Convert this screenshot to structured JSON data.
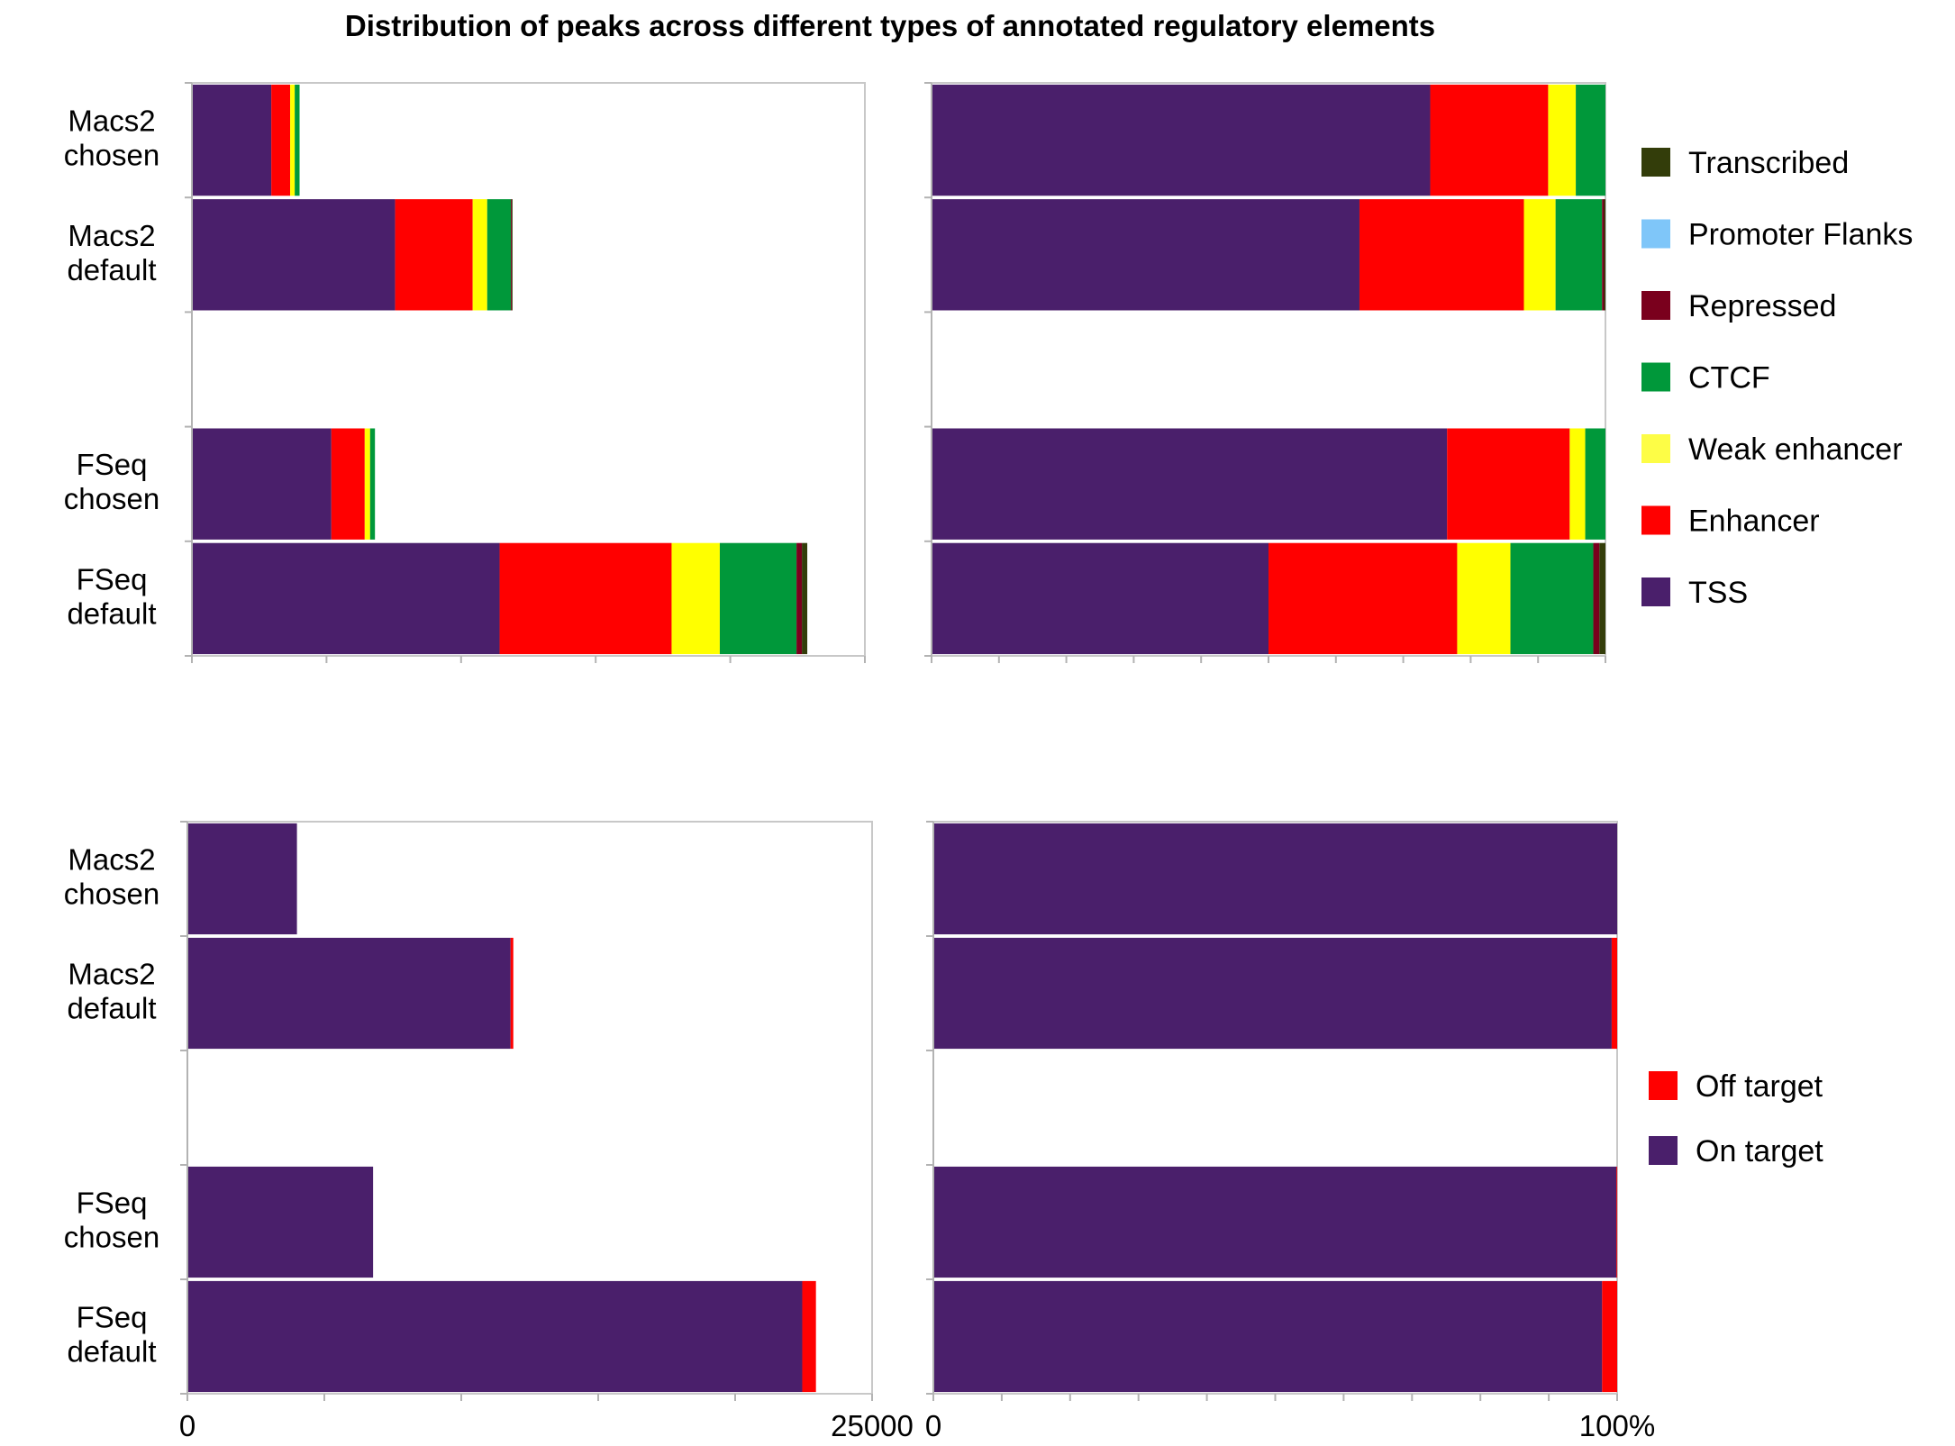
{
  "title": "Distribution of peaks across different types of annotated regulatory elements",
  "legend_top": {
    "placement": "right",
    "items": [
      {
        "name": "Transcribed",
        "color": "#333d0a"
      },
      {
        "name": "Promoter Flanks",
        "color": "#7fc6f9"
      },
      {
        "name": "Repressed",
        "color": "#7a001d"
      },
      {
        "name": "CTCF",
        "color": "#00983a"
      },
      {
        "name": "Weak enhancer",
        "color": "#fdfd46"
      },
      {
        "name": "Enhancer",
        "color": "#ff0000"
      },
      {
        "name": "TSS",
        "color": "#4a1f6b"
      }
    ]
  },
  "legend_bottom": {
    "placement": "right",
    "items": [
      {
        "name": "Off target",
        "color": "#ff0000"
      },
      {
        "name": "On target",
        "color": "#4a1f6b"
      }
    ]
  },
  "chart_data": [
    {
      "type": "bar",
      "orientation": "horizontal",
      "stacked": true,
      "categories": [
        "Macs2\nchosen",
        "Macs2\ndefault",
        "",
        "FSeq\nchosen",
        "FSeq\ndefault"
      ],
      "xlim": [
        0,
        25000
      ],
      "grid": false,
      "series": [
        {
          "name": "TSS",
          "color": "#4a1f6b",
          "values": [
            2950,
            7550,
            0,
            5180,
            11430
          ]
        },
        {
          "name": "Enhancer",
          "color": "#ff0000",
          "values": [
            700,
            2880,
            0,
            1240,
            6390
          ]
        },
        {
          "name": "Weak enhancer",
          "color": "#ffff00",
          "values": [
            170,
            540,
            0,
            200,
            1790
          ]
        },
        {
          "name": "CTCF",
          "color": "#00983a",
          "values": [
            180,
            880,
            0,
            180,
            2850
          ]
        },
        {
          "name": "Repressed",
          "color": "#7a001d",
          "values": [
            0,
            30,
            0,
            0,
            200
          ]
        },
        {
          "name": "Promoter Flanks",
          "color": "#7fc6f9",
          "values": [
            0,
            0,
            0,
            0,
            0
          ]
        },
        {
          "name": "Transcribed",
          "color": "#333d0a",
          "values": [
            0,
            30,
            0,
            0,
            200
          ]
        }
      ]
    },
    {
      "type": "bar",
      "orientation": "horizontal",
      "stacked": true,
      "normalized": true,
      "categories": [
        "Macs2\nchosen",
        "Macs2\ndefault",
        "",
        "FSeq\nchosen",
        "FSeq\ndefault"
      ],
      "xlim": [
        0,
        100
      ],
      "grid": false,
      "series": [
        {
          "name": "TSS",
          "color": "#4a1f6b",
          "values": [
            74,
            63.5,
            0,
            76.5,
            50
          ]
        },
        {
          "name": "Enhancer",
          "color": "#ff0000",
          "values": [
            17.5,
            24.4,
            0,
            18.2,
            28
          ]
        },
        {
          "name": "Weak enhancer",
          "color": "#ffff00",
          "values": [
            4.1,
            4.7,
            0,
            2.3,
            7.9
          ]
        },
        {
          "name": "CTCF",
          "color": "#00983a",
          "values": [
            4.4,
            6.9,
            0,
            3,
            12.3
          ]
        },
        {
          "name": "Repressed",
          "color": "#7a001d",
          "values": [
            0,
            0.3,
            0,
            0,
            0.9
          ]
        },
        {
          "name": "Promoter Flanks",
          "color": "#7fc6f9",
          "values": [
            0,
            0,
            0,
            0,
            0
          ]
        },
        {
          "name": "Transcribed",
          "color": "#333d0a",
          "values": [
            0,
            0.2,
            0,
            0,
            0.9
          ]
        }
      ]
    },
    {
      "type": "bar",
      "orientation": "horizontal",
      "stacked": true,
      "categories": [
        "Macs2\nchosen",
        "Macs2\ndefault",
        "",
        "FSeq\nchosen",
        "FSeq\ndefault"
      ],
      "xlim": [
        0,
        25000
      ],
      "x_tick_labels": [
        "0",
        "25000"
      ],
      "grid": false,
      "series": [
        {
          "name": "On target",
          "color": "#4a1f6b",
          "values": [
            4000,
            11800,
            0,
            6780,
            22450
          ]
        },
        {
          "name": "Off target",
          "color": "#ff0000",
          "values": [
            0,
            100,
            0,
            0,
            500
          ]
        }
      ]
    },
    {
      "type": "bar",
      "orientation": "horizontal",
      "stacked": true,
      "normalized": true,
      "categories": [
        "Macs2\nchosen",
        "Macs2\ndefault",
        "",
        "FSeq\nchosen",
        "FSeq\ndefault"
      ],
      "xlim": [
        0,
        100
      ],
      "x_tick_labels": [
        "0",
        "100%"
      ],
      "grid": false,
      "series": [
        {
          "name": "On target",
          "color": "#4a1f6b",
          "values": [
            100,
            99.2,
            0,
            99.9,
            97.8
          ]
        },
        {
          "name": "Off target",
          "color": "#ff0000",
          "values": [
            0,
            0.8,
            0,
            0.1,
            2.2
          ]
        }
      ]
    }
  ]
}
